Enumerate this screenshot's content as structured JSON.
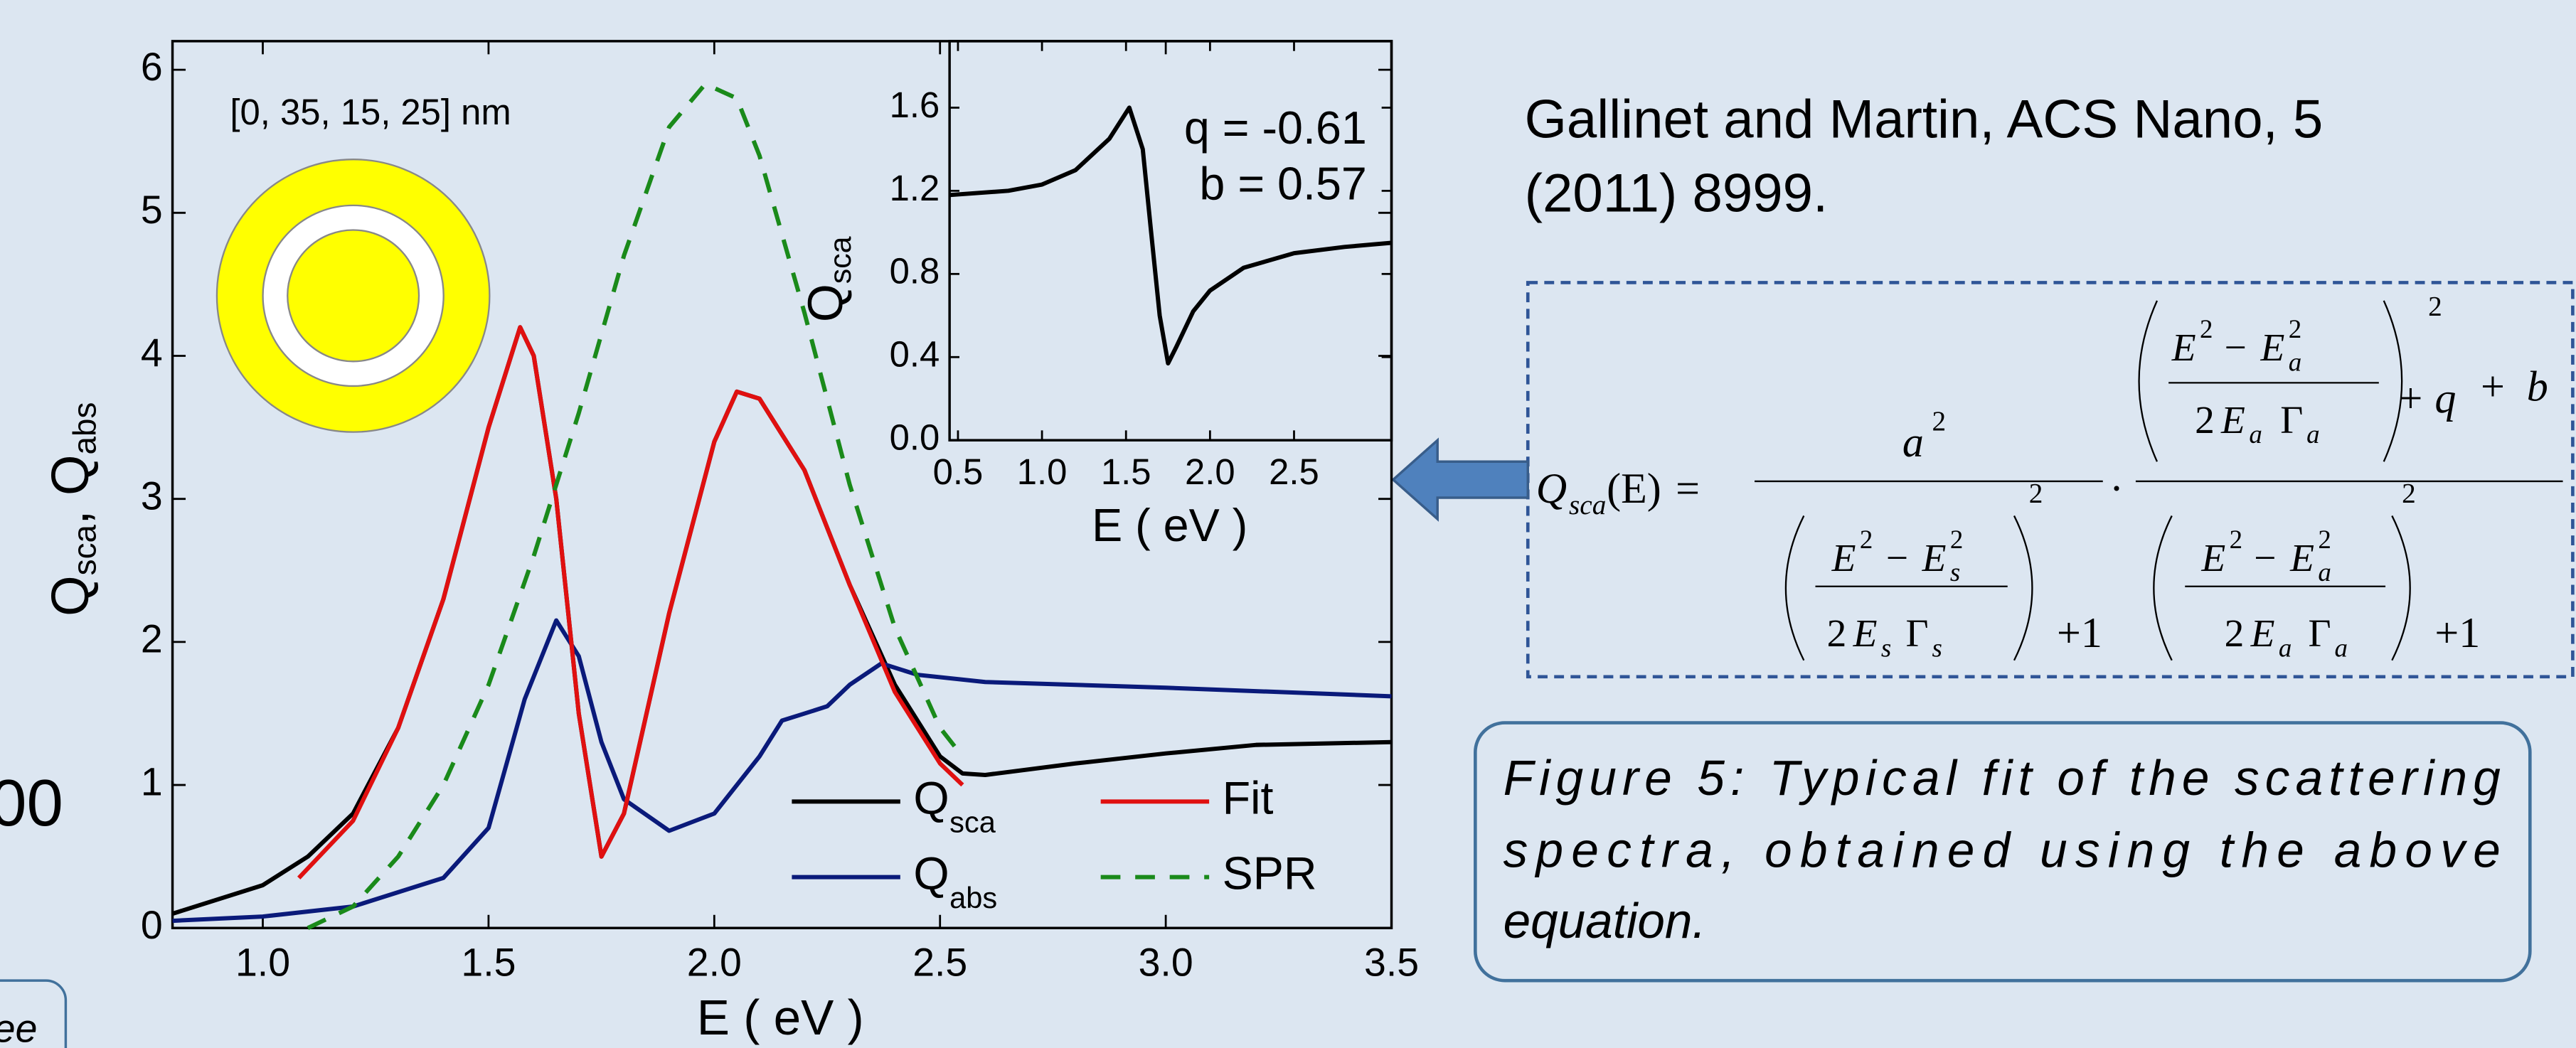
{
  "chart_data": [
    {
      "type": "line",
      "xlabel": "E ( eV )",
      "ylabel": [
        "Q",
        "sca",
        ", Q",
        "abs"
      ],
      "annotation": "[0, 35, 15, 25] nm",
      "xlim": [
        0.8,
        3.5
      ],
      "ylim": [
        0,
        6.2
      ],
      "xticks": [
        {
          "value": 1,
          "label": "1.0"
        },
        {
          "value": 1.5,
          "label": "1.5"
        },
        {
          "value": 2,
          "label": "2.0"
        },
        {
          "value": 2.5,
          "label": "2.5"
        },
        {
          "value": 3,
          "label": "3.0"
        },
        {
          "value": 3.5,
          "label": "3.5"
        }
      ],
      "yticks": [
        0,
        1,
        2,
        3,
        4,
        5,
        6
      ],
      "series": [
        {
          "name": "Q",
          "subscript": "sca",
          "color": "#000000",
          "dashed": false,
          "x": [
            0.8,
            1.0,
            1.1,
            1.2,
            1.3,
            1.4,
            1.5,
            1.57,
            1.6,
            1.65,
            1.7,
            1.75,
            1.8,
            1.9,
            2.0,
            2.05,
            2.1,
            2.2,
            2.3,
            2.4,
            2.5,
            2.55,
            2.6,
            2.8,
            3.0,
            3.2,
            3.5
          ],
          "values": [
            0.1,
            0.3,
            0.5,
            0.8,
            1.4,
            2.3,
            3.5,
            4.2,
            4.0,
            3.0,
            1.5,
            0.5,
            0.8,
            2.2,
            3.4,
            3.75,
            3.7,
            3.2,
            2.4,
            1.7,
            1.2,
            1.08,
            1.07,
            1.15,
            1.22,
            1.28,
            1.3
          ]
        },
        {
          "name": "Q",
          "subscript": "abs",
          "color": "#0a1a7a",
          "dashed": false,
          "x": [
            0.8,
            1.0,
            1.2,
            1.4,
            1.5,
            1.58,
            1.65,
            1.7,
            1.75,
            1.8,
            1.9,
            2.0,
            2.1,
            2.15,
            2.2,
            2.25,
            2.3,
            2.37,
            2.45,
            2.6,
            3.0,
            3.5
          ],
          "values": [
            0.05,
            0.08,
            0.15,
            0.35,
            0.7,
            1.6,
            2.15,
            1.9,
            1.3,
            0.9,
            0.68,
            0.8,
            1.2,
            1.45,
            1.5,
            1.55,
            1.7,
            1.85,
            1.77,
            1.72,
            1.68,
            1.62
          ]
        },
        {
          "name": "Fit",
          "color": "#e01010",
          "dashed": false,
          "x": [
            1.08,
            1.2,
            1.3,
            1.4,
            1.5,
            1.57,
            1.6,
            1.65,
            1.7,
            1.75,
            1.8,
            1.9,
            2.0,
            2.05,
            2.1,
            2.2,
            2.3,
            2.4,
            2.5,
            2.55
          ],
          "values": [
            0.35,
            0.75,
            1.4,
            2.3,
            3.5,
            4.2,
            4.0,
            3.0,
            1.5,
            0.5,
            0.8,
            2.2,
            3.4,
            3.75,
            3.7,
            3.2,
            2.4,
            1.65,
            1.15,
            1.0
          ]
        },
        {
          "name": "SPR",
          "color": "#1a8a1a",
          "dashed": true,
          "x": [
            1.1,
            1.2,
            1.3,
            1.4,
            1.5,
            1.6,
            1.7,
            1.8,
            1.9,
            1.98,
            2.05,
            2.1,
            2.2,
            2.3,
            2.4,
            2.5,
            2.55
          ],
          "values": [
            0.0,
            0.15,
            0.5,
            1.0,
            1.7,
            2.6,
            3.6,
            4.7,
            5.6,
            5.9,
            5.8,
            5.4,
            4.3,
            3.1,
            2.1,
            1.4,
            1.2
          ]
        }
      ]
    },
    {
      "type": "line",
      "xlabel": "E ( eV )",
      "ylabel": [
        "Q",
        "sca"
      ],
      "annotations": [
        "q = -0.61",
        "b = 0.57"
      ],
      "xlim": [
        0.45,
        3.08
      ],
      "ylim": [
        0,
        1.92
      ],
      "xticks": [
        {
          "value": 0.5,
          "label": "0.5"
        },
        {
          "value": 1,
          "label": "1.0"
        },
        {
          "value": 1.5,
          "label": "1.5"
        },
        {
          "value": 2,
          "label": "2.0"
        },
        {
          "value": 2.5,
          "label": "2.5"
        }
      ],
      "yticks": [
        {
          "value": 0,
          "label": "0.0"
        },
        {
          "value": 0.4,
          "label": "0.4"
        },
        {
          "value": 0.8,
          "label": "0.8"
        },
        {
          "value": 1.2,
          "label": "1.2"
        },
        {
          "value": 1.6,
          "label": "1.6"
        }
      ],
      "series": [
        {
          "color": "#000000",
          "dashed": false,
          "x": [
            0.45,
            0.8,
            1.0,
            1.2,
            1.4,
            1.52,
            1.6,
            1.65,
            1.7,
            1.75,
            1.8,
            1.9,
            2.0,
            2.2,
            2.5,
            2.8,
            3.08
          ],
          "values": [
            1.18,
            1.2,
            1.23,
            1.3,
            1.45,
            1.6,
            1.4,
            1.0,
            0.6,
            0.37,
            0.45,
            0.62,
            0.72,
            0.83,
            0.9,
            0.93,
            0.95
          ]
        }
      ]
    }
  ],
  "citation": [
    "Gallinet and Martin, ACS Nano, 5",
    "(2011) 8999."
  ],
  "caption": [
    "Figure 5: Typical fit of the scattering",
    "spectra, obtained using the above",
    "equation."
  ],
  "equation": [
    "Q",
    "sca",
    "(E)",
    "=",
    "a",
    "2",
    "E",
    "2",
    "−",
    "E",
    "s",
    "2",
    "2",
    "E",
    "s",
    "Γ",
    "s",
    "2",
    "+1",
    "·",
    "E",
    "2",
    "−",
    "E",
    "a",
    "2",
    "2",
    "E",
    "a",
    "Γ",
    "a",
    "+",
    "q",
    "2",
    "+",
    "b",
    "E",
    "2",
    "−",
    "E",
    "a",
    "2",
    "2",
    "E",
    "a",
    "Γ",
    "a",
    "2",
    "+1"
  ],
  "edge_fragments": [
    "00",
    "ee"
  ]
}
